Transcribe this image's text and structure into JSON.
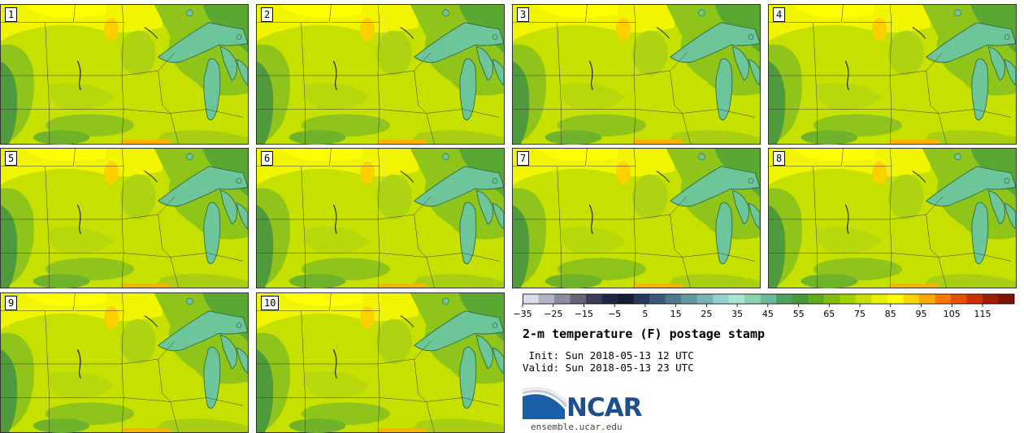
{
  "panels": [
    {
      "label": "1"
    },
    {
      "label": "2"
    },
    {
      "label": "3"
    },
    {
      "label": "4"
    },
    {
      "label": "5"
    },
    {
      "label": "6"
    },
    {
      "label": "7"
    },
    {
      "label": "8"
    },
    {
      "label": "9"
    },
    {
      "label": "10"
    }
  ],
  "colorbar": {
    "colors": [
      "#dcdce6",
      "#b4b4c8",
      "#8c8ca0",
      "#646478",
      "#3c3c5a",
      "#1e2846",
      "#141e37",
      "#28375a",
      "#3c5a78",
      "#50788c",
      "#6496a0",
      "#78b4b4",
      "#96d2d2",
      "#aae6d2",
      "#8cd2b4",
      "#6eb996",
      "#50a064",
      "#46963c",
      "#64aa1e",
      "#82be0a",
      "#a0d200",
      "#c8e100",
      "#e6f000",
      "#ffff00",
      "#ffd700",
      "#ffaa00",
      "#ff7800",
      "#e65000",
      "#c83200",
      "#a01e00",
      "#781400"
    ],
    "tick_values": [
      "−35",
      "−25",
      "−15",
      "−5",
      "5",
      "15",
      "25",
      "35",
      "45",
      "55",
      "65",
      "75",
      "85",
      "95",
      "105",
      "115"
    ]
  },
  "title": "2-m temperature (F) postage stamp",
  "init": " Init: Sun 2018-05-13 12 UTC",
  "valid": "Valid: Sun 2018-05-13 23 UTC",
  "logo": {
    "text": "NCAR",
    "website": "ensemble.ucar.edu"
  }
}
